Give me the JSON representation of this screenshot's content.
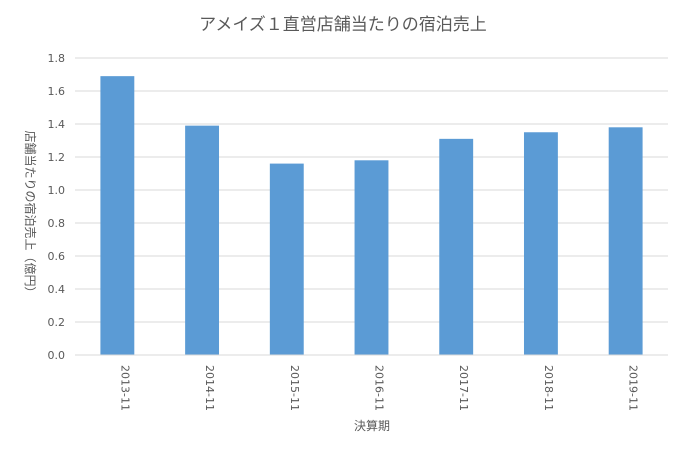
{
  "chart_data": {
    "type": "bar",
    "title": "アメイズ１直営店舗当たりの宿泊売上",
    "xlabel": "決算期",
    "ylabel": "店舗当たりの宿泊売上（億円）",
    "categories": [
      "2013-11",
      "2014-11",
      "2015-11",
      "2016-11",
      "2017-11",
      "2018-11",
      "2019-11"
    ],
    "values": [
      1.69,
      1.39,
      1.16,
      1.18,
      1.31,
      1.35,
      1.38
    ],
    "ylim": [
      0,
      1.8
    ],
    "yticks": [
      "0.0",
      "0.2",
      "0.4",
      "0.6",
      "0.8",
      "1.0",
      "1.2",
      "1.4",
      "1.6",
      "1.8"
    ],
    "grid": true,
    "legend": "none",
    "colors": {
      "bar": "#5b9bd5",
      "grid": "#d9d9d9",
      "text": "#595959"
    }
  }
}
